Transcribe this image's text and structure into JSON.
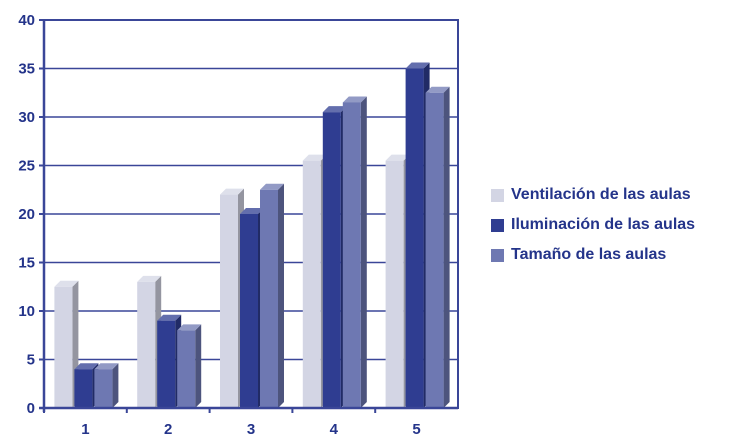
{
  "chart_data": {
    "type": "bar",
    "categories": [
      "1",
      "2",
      "3",
      "4",
      "5"
    ],
    "series": [
      {
        "name": "Ventilación de las aulas",
        "color": "#d3d5e4",
        "values": [
          12.5,
          13,
          22,
          25.5,
          25.5
        ]
      },
      {
        "name": "Iluminación de las aulas",
        "color": "#2f3d91",
        "values": [
          4,
          9,
          20,
          30.5,
          35
        ]
      },
      {
        "name": "Tamaño de las aulas",
        "color": "#6e78b2",
        "values": [
          4,
          8,
          22.5,
          31.5,
          32.5
        ]
      }
    ],
    "ylim": [
      0,
      40
    ],
    "yticks": [
      0,
      5,
      10,
      15,
      20,
      25,
      30,
      35,
      40
    ],
    "grid": true,
    "legend_position": "right",
    "title": "",
    "xlabel": "",
    "ylabel": ""
  }
}
